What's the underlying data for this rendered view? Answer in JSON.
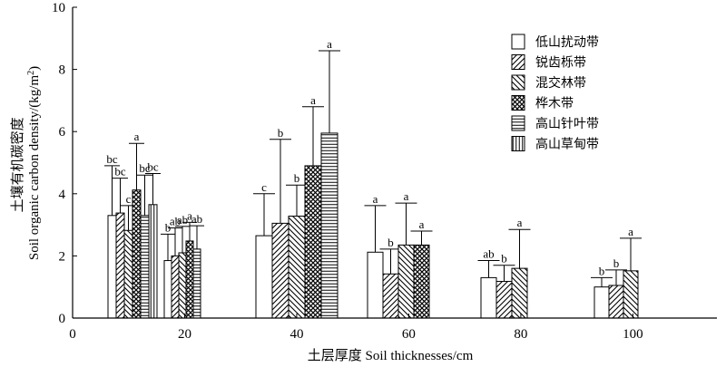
{
  "chart_data": {
    "type": "bar",
    "xlabel": "土层厚度 Soil thicknesses/cm",
    "ylabel_cn": "土壤有机碳密度",
    "ylabel_en": "Soil organic carbon density/(kg/m",
    "ylabel_sup": "2",
    "ylabel_end": ")",
    "xlim": [
      0,
      115
    ],
    "ylim": [
      0,
      10
    ],
    "x_ticks": [
      "0",
      "20",
      "40",
      "60",
      "80",
      "100"
    ],
    "x_tick_values": [
      0,
      20,
      40,
      60,
      80,
      100
    ],
    "y_ticks": [
      "0",
      "2",
      "4",
      "6",
      "8",
      "10"
    ],
    "y_tick_values": [
      0,
      2,
      4,
      6,
      8,
      10
    ],
    "legend_position": "top-right",
    "categories": [
      "10",
      "20",
      "40",
      "60",
      "80",
      "100"
    ],
    "series": [
      {
        "name": "低山扰动带",
        "pattern": "blank",
        "values": [
          3.3,
          1.85,
          2.65,
          2.12,
          1.3,
          1.0
        ],
        "errors": [
          1.6,
          0.85,
          1.35,
          1.5,
          0.55,
          0.3
        ],
        "letters": [
          "bc",
          "b",
          "c",
          "a",
          "ab",
          "b"
        ]
      },
      {
        "name": "锐齿栎带",
        "pattern": "diagonal-up",
        "values": [
          3.38,
          2.0,
          3.05,
          1.42,
          1.18,
          1.05
        ],
        "errors": [
          1.12,
          0.9,
          2.7,
          0.8,
          0.52,
          0.5
        ],
        "letters": [
          "bc",
          "ab",
          "b",
          "b",
          "b",
          "b"
        ]
      },
      {
        "name": "混交林带",
        "pattern": "diagonal-down",
        "values": [
          2.82,
          2.1,
          3.28,
          2.35,
          1.6,
          1.52
        ],
        "errors": [
          0.8,
          0.85,
          1.0,
          1.35,
          1.25,
          1.05
        ],
        "letters": [
          "c",
          "ab",
          "b",
          "a",
          "a",
          "a"
        ]
      },
      {
        "name": "桦木带",
        "pattern": "crosshatch",
        "values": [
          4.12,
          2.48,
          4.9,
          2.35,
          null,
          null
        ],
        "errors": [
          1.5,
          0.6,
          1.9,
          0.45,
          null,
          null
        ],
        "letters": [
          "a",
          "a",
          "a",
          "a",
          null,
          null
        ]
      },
      {
        "name": "高山针叶带",
        "pattern": "horizontal",
        "values": [
          3.3,
          2.22,
          5.95,
          null,
          null,
          null
        ],
        "errors": [
          1.3,
          0.75,
          2.65,
          null,
          null,
          null
        ],
        "letters": [
          "bc",
          "ab",
          "a",
          null,
          null,
          null
        ]
      },
      {
        "name": "高山草甸带",
        "pattern": "vertical",
        "values": [
          3.65,
          null,
          null,
          null,
          null,
          null
        ],
        "errors": [
          1.0,
          null,
          null,
          null,
          null,
          null
        ],
        "letters": [
          "bc",
          null,
          null,
          null,
          null,
          null
        ]
      }
    ]
  }
}
